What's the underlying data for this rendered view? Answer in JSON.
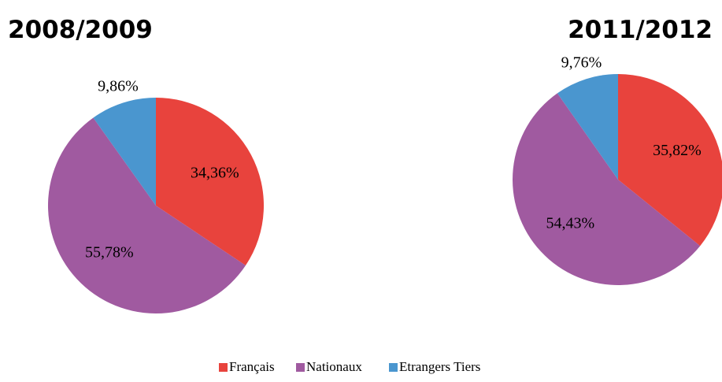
{
  "chart_data": [
    {
      "type": "pie",
      "title": "2008/2009",
      "categories": [
        "Français",
        "Nationaux",
        "Etrangers Tiers"
      ],
      "values": [
        34.36,
        55.78,
        9.86
      ],
      "value_labels": [
        "34,36%",
        "55,78%",
        "9,86%"
      ],
      "colors": [
        "#e8433d",
        "#a05aa0",
        "#4a96cf"
      ]
    },
    {
      "type": "pie",
      "title": "2011/2012",
      "categories": [
        "Français",
        "Nationaux",
        "Etrangers Tiers"
      ],
      "values": [
        35.82,
        54.43,
        9.76
      ],
      "value_labels": [
        "35,82%",
        "54,43%",
        "9,76%"
      ],
      "colors": [
        "#e8433d",
        "#a05aa0",
        "#4a96cf"
      ]
    }
  ]
}
